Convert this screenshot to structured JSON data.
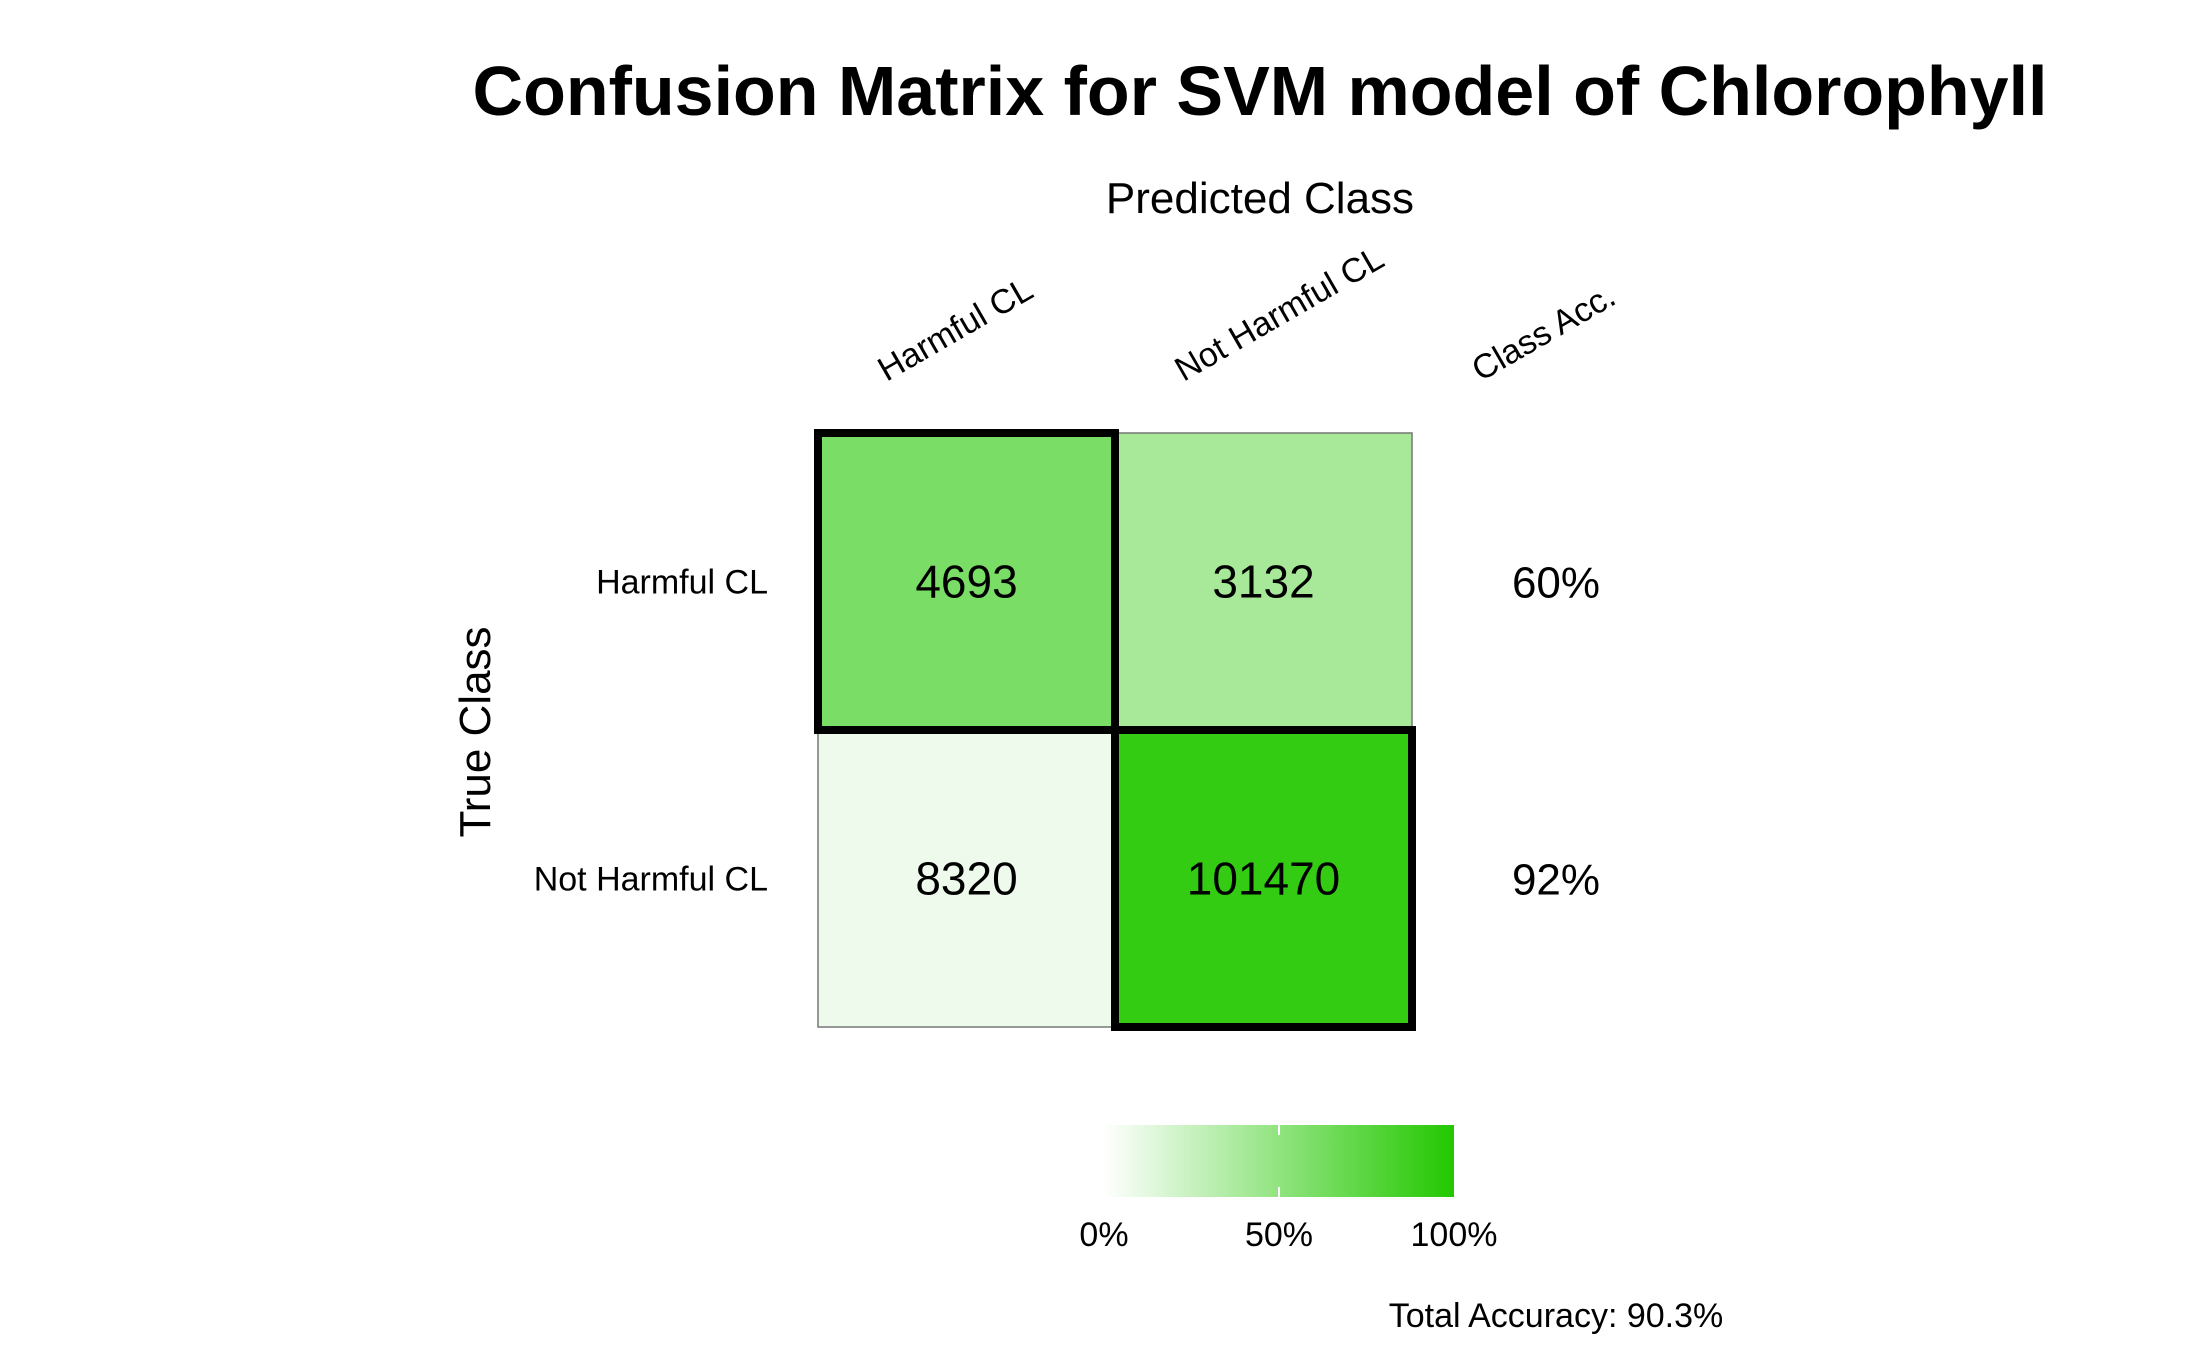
{
  "chart_data": {
    "type": "heatmap",
    "title": "Confusion Matrix for SVM model of Chlorophyll",
    "xlabel": "Predicted Class",
    "ylabel": "True Class",
    "x_categories": [
      "Harmful CL",
      "Not Harmful CL"
    ],
    "y_categories": [
      "Harmful CL",
      "Not Harmful CL"
    ],
    "extra_column_label": "Class Acc.",
    "matrix": [
      [
        4693,
        3132
      ],
      [
        8320,
        101470
      ]
    ],
    "row_fraction": [
      [
        0.6,
        0.4
      ],
      [
        0.076,
        0.924
      ]
    ],
    "class_accuracy": [
      "60%",
      "92%"
    ],
    "legend": {
      "ticks": [
        "0%",
        "50%",
        "100%"
      ],
      "color_low": "#ffffff",
      "color_high": "#22c800"
    },
    "total_accuracy": "Total Accuracy: 90.3%",
    "highlight_border_color": "#000000"
  }
}
